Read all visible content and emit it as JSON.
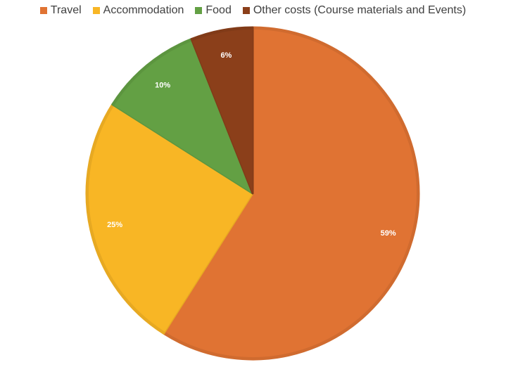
{
  "chart_data": {
    "type": "pie",
    "categories": [
      "Travel",
      "Accommodation",
      "Food",
      "Other costs (Course materials and Events)"
    ],
    "values": [
      59,
      25,
      10,
      6
    ],
    "data_labels": [
      "59%",
      "25%",
      "10%",
      "6%"
    ],
    "colors": [
      "#E07333",
      "#F8B625",
      "#63A044",
      "#8B3F1A"
    ],
    "title": "",
    "legend_position": "top"
  }
}
